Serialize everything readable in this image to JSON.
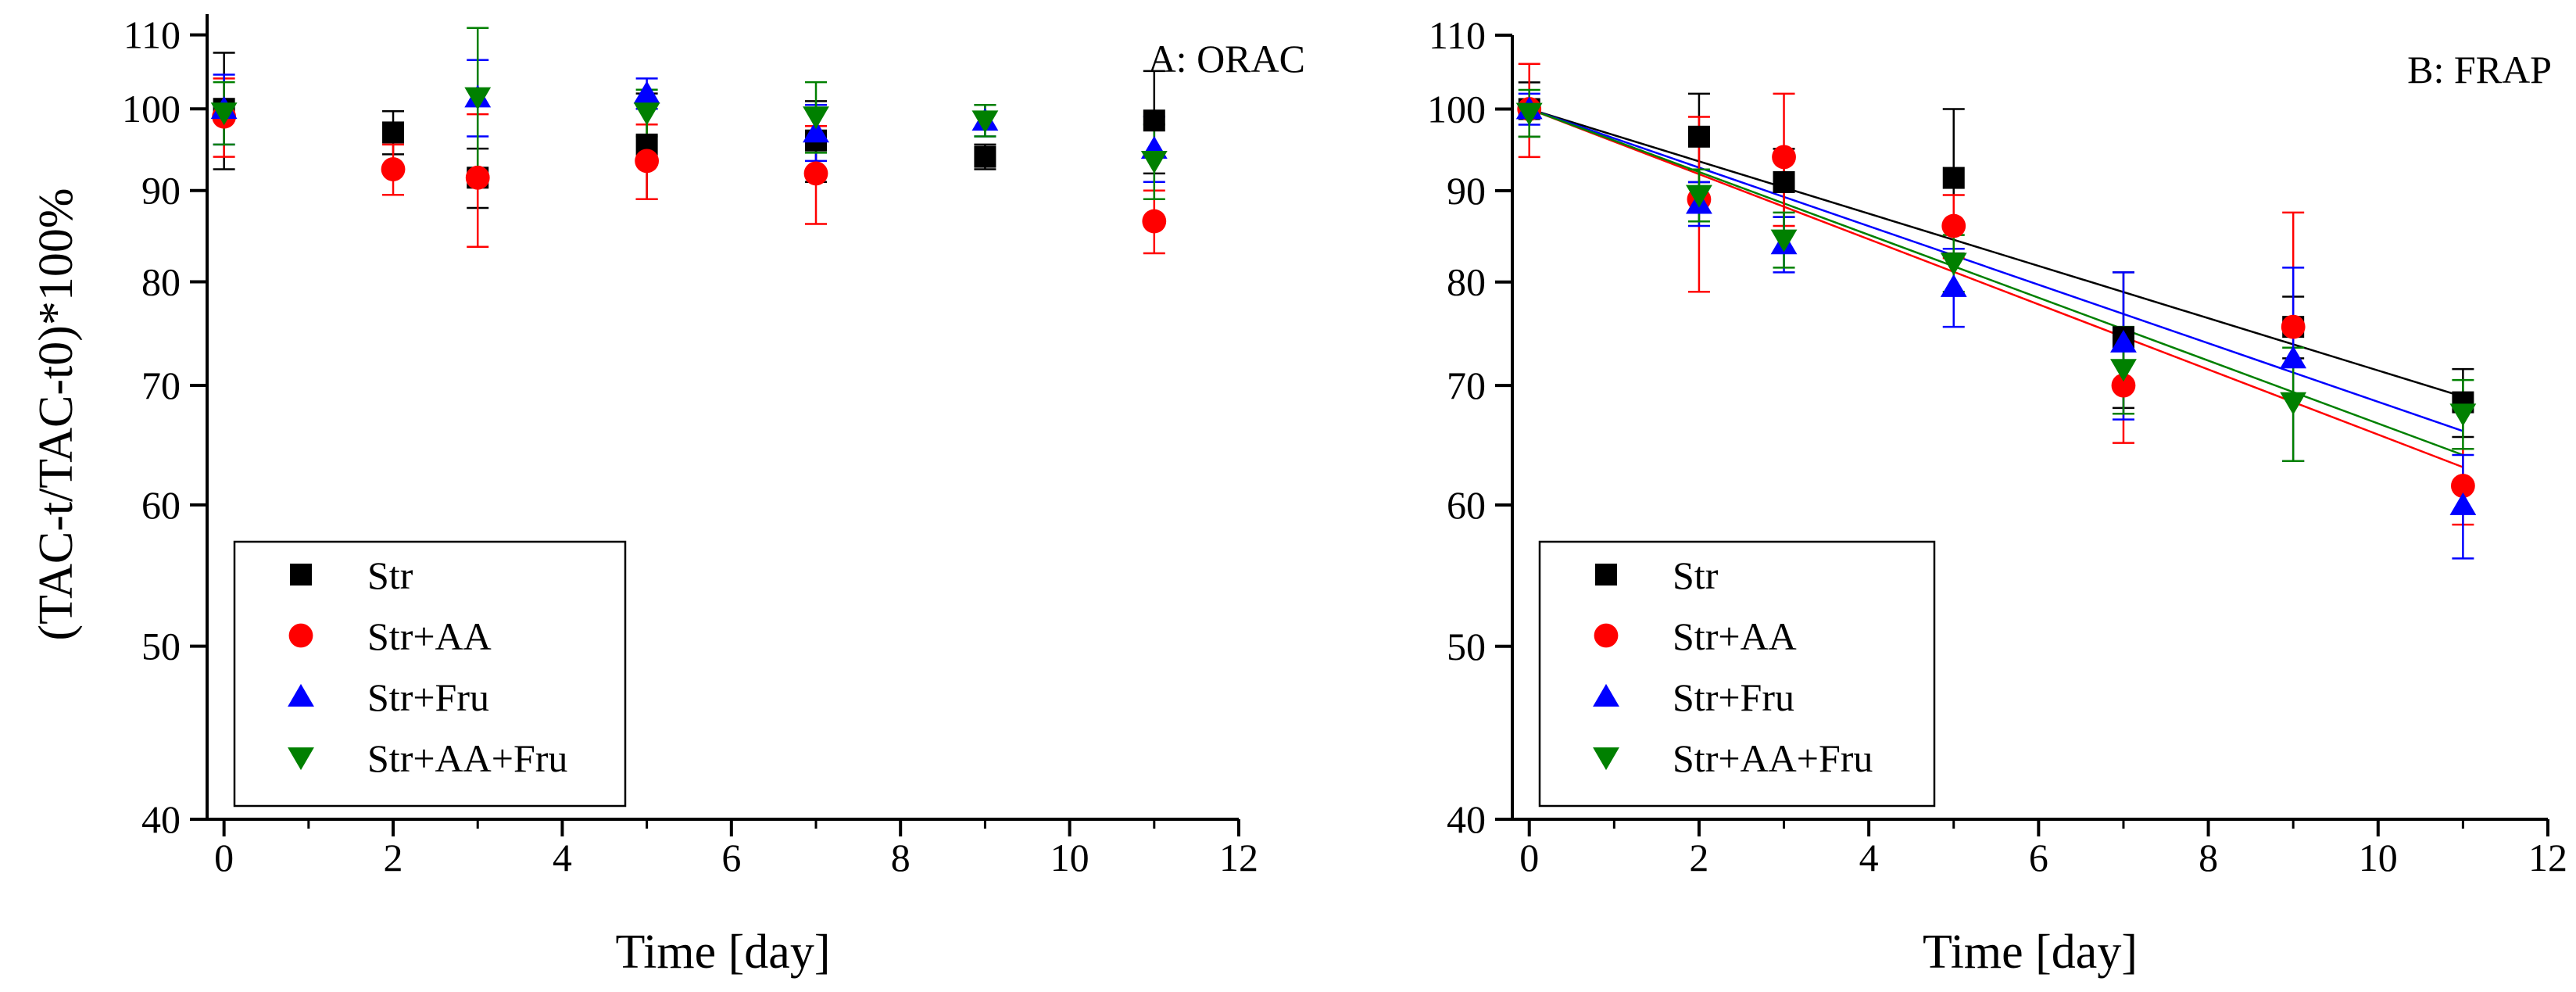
{
  "chart_data": [
    {
      "type": "scatter",
      "title": "A: ORAC",
      "xlabel": "Time [day]",
      "ylabel": "(TAC-t/TAC-t0)*100%",
      "xlim": [
        -0.2,
        12
      ],
      "ylim": [
        40,
        113
      ],
      "yscale": "log",
      "xticks": [
        0,
        2,
        4,
        6,
        8,
        10,
        12
      ],
      "yticks": [
        40,
        50,
        60,
        70,
        80,
        90,
        100,
        110
      ],
      "grid": false,
      "legend_position": "bottom-left",
      "series": [
        {
          "name": "Str",
          "marker": "square",
          "color": "#000000",
          "points": [
            {
              "x": 0,
              "y": 100,
              "err": 7.5
            },
            {
              "x": 2,
              "y": 97,
              "err": 2.7
            },
            {
              "x": 3,
              "y": 91.5,
              "err": 3.5
            },
            {
              "x": 5,
              "y": 95.5,
              "err": 6.5
            },
            {
              "x": 7,
              "y": 96,
              "err": 5
            },
            {
              "x": 9,
              "y": 94,
              "err": 1.5
            },
            {
              "x": 11,
              "y": 98.5,
              "err": 6.5
            }
          ]
        },
        {
          "name": "Str+AA",
          "marker": "circle",
          "color": "#ff0000",
          "points": [
            {
              "x": 0,
              "y": 99,
              "err": 5
            },
            {
              "x": 2,
              "y": 92.5,
              "err": 3
            },
            {
              "x": 3,
              "y": 91.5,
              "err": 7.8
            },
            {
              "x": 5,
              "y": 93.5,
              "err": 4.5
            },
            {
              "x": 7,
              "y": 92,
              "err": 5.8
            },
            {
              "x": 11,
              "y": 86.5,
              "err": 3.5
            }
          ]
        },
        {
          "name": "Str+Fru",
          "marker": "triangle-up",
          "color": "#0000ff",
          "points": [
            {
              "x": 0,
              "y": 100,
              "err": 4.5
            },
            {
              "x": 3,
              "y": 101.5,
              "err": 5
            },
            {
              "x": 5,
              "y": 102,
              "err": 2
            },
            {
              "x": 7,
              "y": 97,
              "err": 3.5
            },
            {
              "x": 9,
              "y": 98.5,
              "err": 2
            },
            {
              "x": 11,
              "y": 95,
              "err": 4
            }
          ]
        },
        {
          "name": "Str+AA+Fru",
          "marker": "triangle-down",
          "color": "#008000",
          "points": [
            {
              "x": 0,
              "y": 99.5,
              "err": 4
            },
            {
              "x": 3,
              "y": 101.5,
              "err": 9.5
            },
            {
              "x": 5,
              "y": 99.5,
              "err": 3
            },
            {
              "x": 7,
              "y": 99,
              "err": 4.5
            },
            {
              "x": 9,
              "y": 98.5,
              "err": 2
            },
            {
              "x": 11,
              "y": 93.5,
              "err": 4.5
            }
          ]
        }
      ]
    },
    {
      "type": "scatter",
      "title": "B: FRAP",
      "xlabel": "Time [day]",
      "ylabel": "",
      "xlim": [
        -0.2,
        12
      ],
      "ylim": [
        40,
        110
      ],
      "yscale": "log",
      "xticks": [
        0,
        2,
        4,
        6,
        8,
        10,
        12
      ],
      "yticks": [
        40,
        50,
        60,
        70,
        80,
        90,
        100,
        110
      ],
      "grid": false,
      "legend_position": "bottom-left",
      "series": [
        {
          "name": "Str",
          "marker": "square",
          "color": "#000000",
          "trend": [
            [
              0,
              100
            ],
            [
              11,
              69
            ]
          ],
          "points": [
            {
              "x": 0,
              "y": 100,
              "err": 3.5
            },
            {
              "x": 2,
              "y": 96.5,
              "err": 5.5
            },
            {
              "x": 3,
              "y": 91,
              "err": 4
            },
            {
              "x": 5,
              "y": 91.5,
              "err": 8.5
            },
            {
              "x": 7,
              "y": 74.5,
              "err": 6.5
            },
            {
              "x": 9,
              "y": 75.5,
              "err": 3
            },
            {
              "x": 11,
              "y": 68.5,
              "err": 3
            }
          ]
        },
        {
          "name": "Str+AA",
          "marker": "circle",
          "color": "#ff0000",
          "trend": [
            [
              0,
              100
            ],
            [
              11,
              63
            ]
          ],
          "points": [
            {
              "x": 0,
              "y": 100,
              "err": 6
            },
            {
              "x": 2,
              "y": 89,
              "err": 10
            },
            {
              "x": 3,
              "y": 94,
              "err": 8
            },
            {
              "x": 5,
              "y": 86,
              "err": 3.5
            },
            {
              "x": 7,
              "y": 70,
              "err": 5
            },
            {
              "x": 9,
              "y": 75.5,
              "err": 12
            },
            {
              "x": 11,
              "y": 61.5,
              "err": 3
            }
          ]
        },
        {
          "name": "Str+Fru",
          "marker": "triangle-up",
          "color": "#0000ff",
          "trend": [
            [
              0,
              100
            ],
            [
              11,
              66
            ]
          ],
          "points": [
            {
              "x": 0,
              "y": 100,
              "err": 2
            },
            {
              "x": 2,
              "y": 88.5,
              "err": 2.5
            },
            {
              "x": 3,
              "y": 84,
              "err": 3
            },
            {
              "x": 5,
              "y": 79.5,
              "err": 4
            },
            {
              "x": 7,
              "y": 74,
              "err": 7
            },
            {
              "x": 9,
              "y": 72.5,
              "err": 9
            },
            {
              "x": 11,
              "y": 60,
              "err": 4
            }
          ]
        },
        {
          "name": "Str+AA+Fru",
          "marker": "triangle-down",
          "color": "#008000",
          "trend": [
            [
              0,
              100
            ],
            [
              11,
              64
            ]
          ],
          "points": [
            {
              "x": 0,
              "y": 99.5,
              "err": 3
            },
            {
              "x": 2,
              "y": 89.5,
              "err": 3
            },
            {
              "x": 3,
              "y": 84.5,
              "err": 3
            },
            {
              "x": 5,
              "y": 82,
              "err": 3
            },
            {
              "x": 7,
              "y": 71.5,
              "err": 4
            },
            {
              "x": 9,
              "y": 68.5,
              "err": 5
            },
            {
              "x": 11,
              "y": 67.5,
              "err": 3
            }
          ]
        }
      ]
    }
  ]
}
